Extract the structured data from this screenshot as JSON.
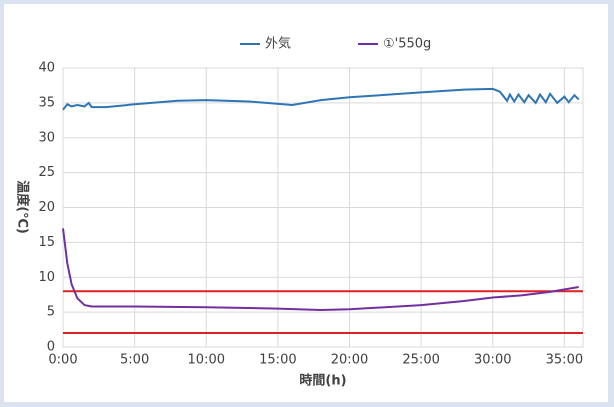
{
  "chart_data": {
    "type": "line",
    "x_label": "時間(h)",
    "y_label": "温度(℃)",
    "xlim": [
      0,
      36.3
    ],
    "ylim": [
      0,
      40
    ],
    "xticks": [
      {
        "value": 0,
        "label": "0:00"
      },
      {
        "value": 5,
        "label": "5:00"
      },
      {
        "value": 10,
        "label": "10:00"
      },
      {
        "value": 15,
        "label": "15:00"
      },
      {
        "value": 20,
        "label": "20:00"
      },
      {
        "value": 25,
        "label": "25:00"
      },
      {
        "value": 30,
        "label": "30:00"
      },
      {
        "value": 35,
        "label": "35:00"
      }
    ],
    "yticks": [
      0,
      5,
      10,
      15,
      20,
      25,
      30,
      35,
      40
    ],
    "grid": true,
    "legend": "top",
    "series": [
      {
        "name": "外気",
        "color": "#2e75b6",
        "x": [
          0,
          0.3,
          0.6,
          1,
          1.5,
          1.8,
          2,
          3,
          5,
          8,
          10,
          13,
          16,
          18,
          20,
          25,
          28,
          30,
          30.5,
          31,
          31.2,
          31.5,
          31.8,
          32.2,
          32.5,
          33,
          33.3,
          33.7,
          34,
          34.5,
          35,
          35.3,
          35.7,
          36
        ],
        "values": [
          34,
          34.8,
          34.5,
          34.7,
          34.5,
          35,
          34.4,
          34.4,
          34.8,
          35.3,
          35.4,
          35.2,
          34.7,
          35.4,
          35.8,
          36.5,
          36.9,
          37,
          36.6,
          35.3,
          36.2,
          35.2,
          36.2,
          35.1,
          36.1,
          35,
          36.2,
          35.1,
          36.3,
          35,
          35.9,
          35.1,
          36.1,
          35.5
        ]
      },
      {
        "name": "①'550g",
        "color": "#7030a0",
        "x": [
          0,
          0.3,
          0.6,
          1,
          1.5,
          2,
          5,
          10,
          15,
          18,
          20,
          25,
          28,
          30,
          32,
          34,
          36
        ],
        "values": [
          17,
          12,
          9,
          7,
          6,
          5.8,
          5.8,
          5.7,
          5.5,
          5.3,
          5.4,
          6,
          6.6,
          7.1,
          7.4,
          7.9,
          8.6
        ]
      }
    ],
    "reference_lines": {
      "color": "#e02020",
      "values": [
        8,
        2
      ]
    }
  }
}
